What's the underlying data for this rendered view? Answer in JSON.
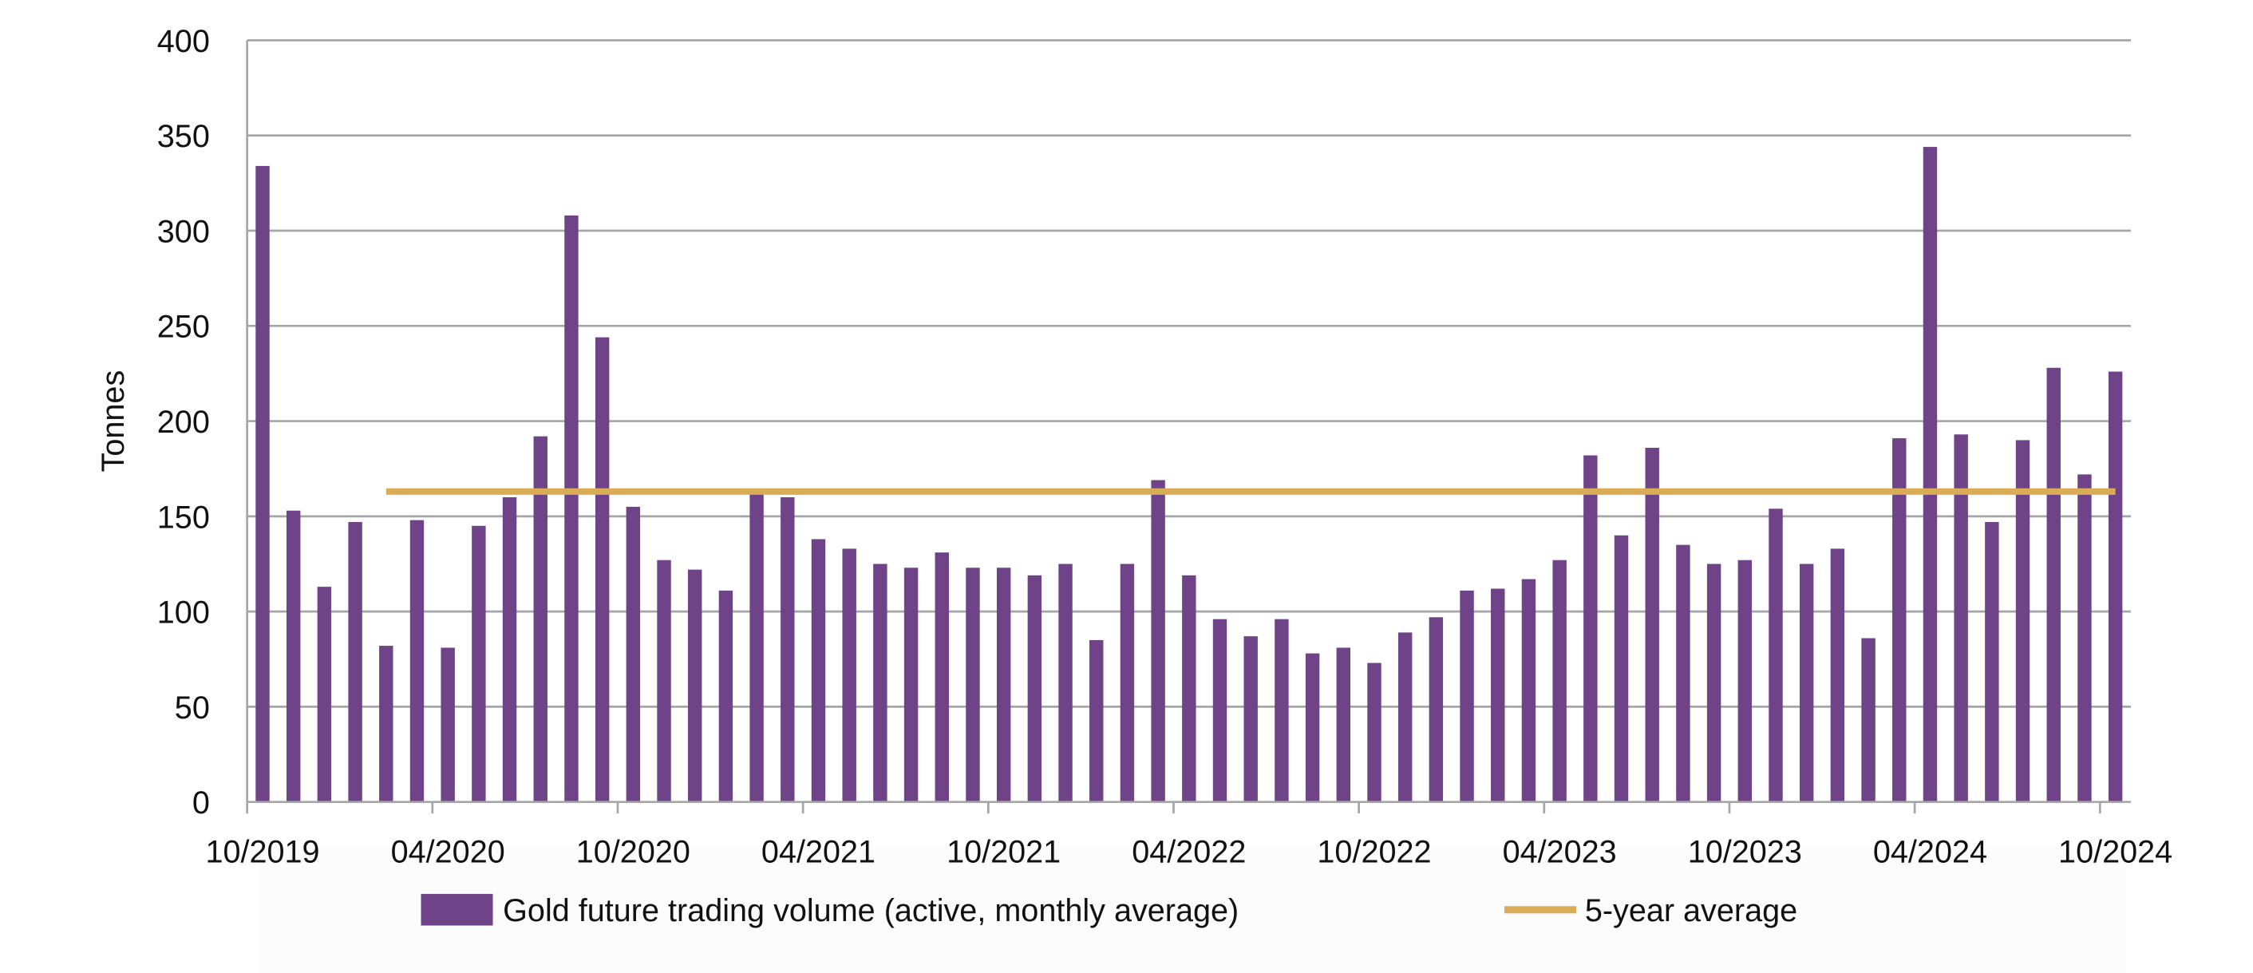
{
  "chart_data": {
    "type": "bar",
    "title": "",
    "xlabel": "",
    "ylabel": "Tonnes",
    "ylim": [
      0,
      400
    ],
    "yticks": [
      0,
      50,
      100,
      150,
      200,
      250,
      300,
      350,
      400
    ],
    "grid": true,
    "legend_position": "bottom",
    "x_tick_labels": [
      "10/2019",
      "04/2020",
      "10/2020",
      "04/2021",
      "10/2021",
      "04/2022",
      "10/2022",
      "04/2023",
      "10/2023",
      "04/2024",
      "10/2024"
    ],
    "categories": [
      "10/2019",
      "11/2019",
      "12/2019",
      "01/2020",
      "02/2020",
      "03/2020",
      "04/2020",
      "05/2020",
      "06/2020",
      "07/2020",
      "08/2020",
      "09/2020",
      "10/2020",
      "11/2020",
      "12/2020",
      "01/2021",
      "02/2021",
      "03/2021",
      "04/2021",
      "05/2021",
      "06/2021",
      "07/2021",
      "08/2021",
      "09/2021",
      "10/2021",
      "11/2021",
      "12/2021",
      "01/2022",
      "02/2022",
      "03/2022",
      "04/2022",
      "05/2022",
      "06/2022",
      "07/2022",
      "08/2022",
      "09/2022",
      "10/2022",
      "11/2022",
      "12/2022",
      "01/2023",
      "02/2023",
      "03/2023",
      "04/2023",
      "05/2023",
      "06/2023",
      "07/2023",
      "08/2023",
      "09/2023",
      "10/2023",
      "11/2023",
      "12/2023",
      "01/2024",
      "02/2024",
      "03/2024",
      "04/2024",
      "05/2024",
      "06/2024",
      "07/2024",
      "08/2024",
      "09/2024",
      "10/2024"
    ],
    "series": [
      {
        "name": "Gold future trading volume (active, monthly average)",
        "type": "bar",
        "color": "#6e4387",
        "values": [
          334,
          153,
          113,
          147,
          82,
          148,
          81,
          145,
          160,
          192,
          308,
          244,
          155,
          127,
          122,
          111,
          163,
          160,
          138,
          133,
          125,
          123,
          131,
          123,
          123,
          119,
          125,
          85,
          125,
          169,
          119,
          96,
          87,
          96,
          78,
          81,
          73,
          89,
          97,
          111,
          112,
          117,
          127,
          182,
          140,
          186,
          135,
          125,
          127,
          154,
          125,
          133,
          86,
          191,
          344,
          193,
          147,
          190,
          228,
          172,
          226
        ]
      },
      {
        "name": "5-year average",
        "type": "line",
        "color": "#d9ad55",
        "value": 163
      }
    ]
  }
}
